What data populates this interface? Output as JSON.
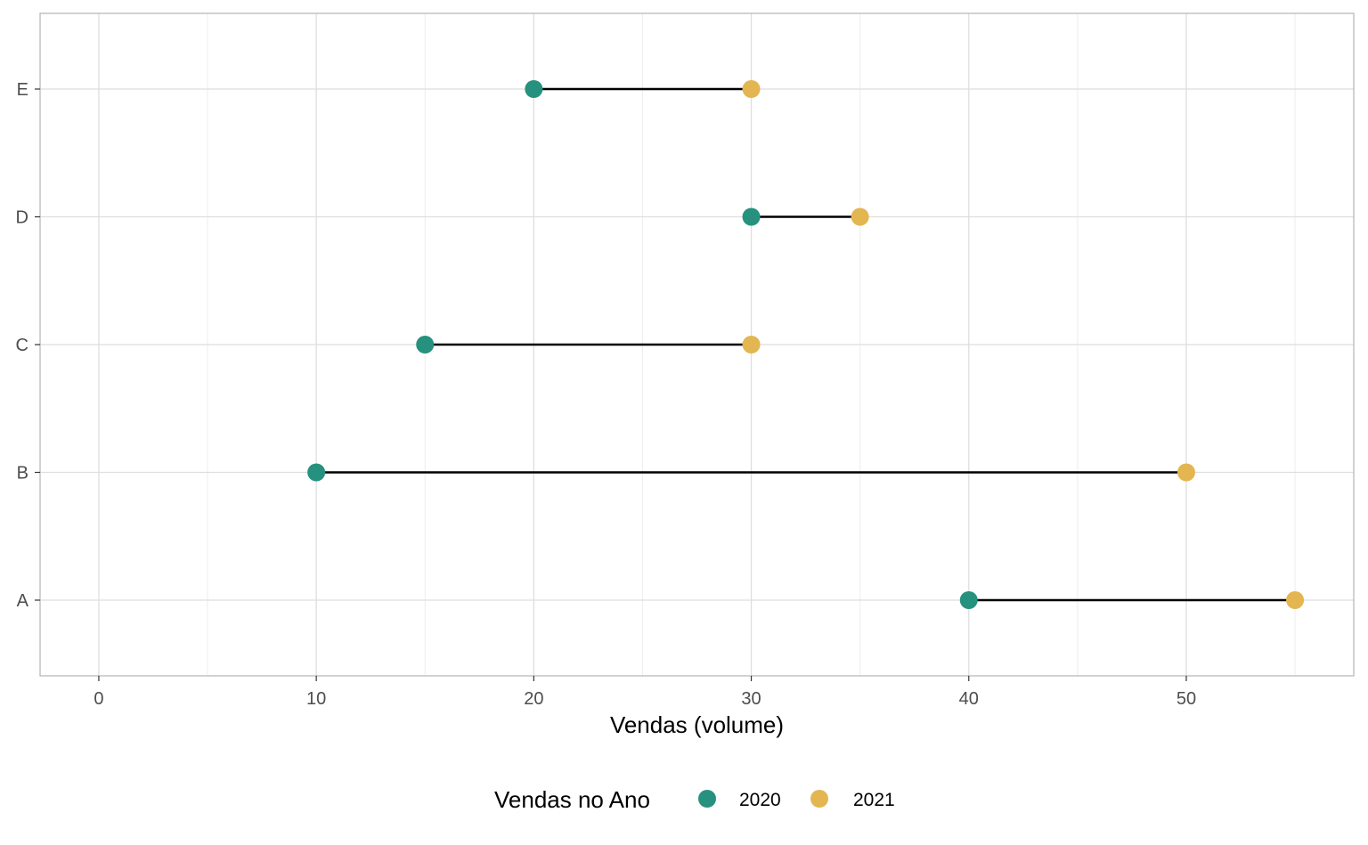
{
  "chart_data": {
    "type": "dumbbell",
    "xlabel": "Vendas (volume)",
    "ylabel": "",
    "xlim": [
      -2.7,
      57.7
    ],
    "x_ticks": [
      0,
      10,
      20,
      30,
      40,
      50
    ],
    "x_minor_ticks": [
      5,
      15,
      25,
      35,
      45,
      55
    ],
    "categories": [
      "A",
      "B",
      "C",
      "D",
      "E"
    ],
    "series": [
      {
        "name": "2020",
        "color": "#26917e",
        "values": [
          40,
          10,
          15,
          30,
          20
        ]
      },
      {
        "name": "2021",
        "color": "#e3b652",
        "values": [
          55,
          50,
          30,
          35,
          30
        ]
      }
    ],
    "segment_color": "#000000",
    "grid": true,
    "legend": {
      "title": "Vendas no Ano",
      "position": "bottom"
    }
  }
}
